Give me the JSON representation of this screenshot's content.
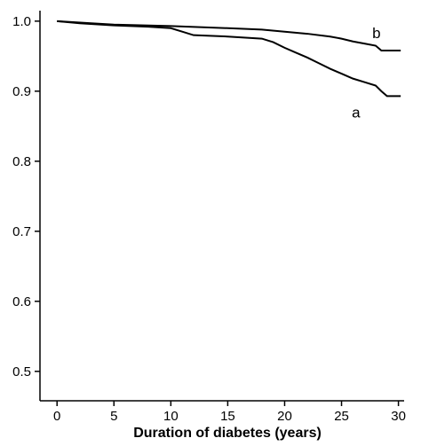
{
  "chart_data": {
    "type": "line",
    "x_label": "Duration of diabetes (years)",
    "xlim": [
      -1.5,
      30.5
    ],
    "xticks": [
      0,
      5,
      10,
      15,
      20,
      25,
      30
    ],
    "ylim": [
      0.458,
      1.015
    ],
    "yticks": [
      0.5,
      0.6,
      0.7,
      0.8,
      0.9,
      {
        "value": 1.0,
        "label": "1.0"
      }
    ],
    "grid": false,
    "series": [
      {
        "name": "a",
        "color": "#000000",
        "x": [
          0,
          2,
          5,
          8,
          10,
          11,
          12,
          15,
          18,
          19,
          20,
          21,
          22,
          23,
          24,
          25,
          26,
          27,
          28,
          28.5,
          29,
          30.2
        ],
        "values": [
          1.0,
          0.997,
          0.994,
          0.992,
          0.99,
          0.985,
          0.98,
          0.978,
          0.975,
          0.97,
          0.962,
          0.955,
          0.948,
          0.94,
          0.932,
          0.925,
          0.918,
          0.913,
          0.908,
          0.9,
          0.893,
          0.893
        ]
      },
      {
        "name": "b",
        "color": "#000000",
        "x": [
          0,
          3,
          5,
          10,
          15,
          18,
          20,
          22,
          24,
          25,
          26,
          27,
          28,
          28.5,
          30.2
        ],
        "values": [
          1.0,
          0.997,
          0.995,
          0.993,
          0.99,
          0.988,
          0.985,
          0.982,
          0.978,
          0.975,
          0.971,
          0.968,
          0.965,
          0.958,
          0.958
        ]
      }
    ]
  }
}
